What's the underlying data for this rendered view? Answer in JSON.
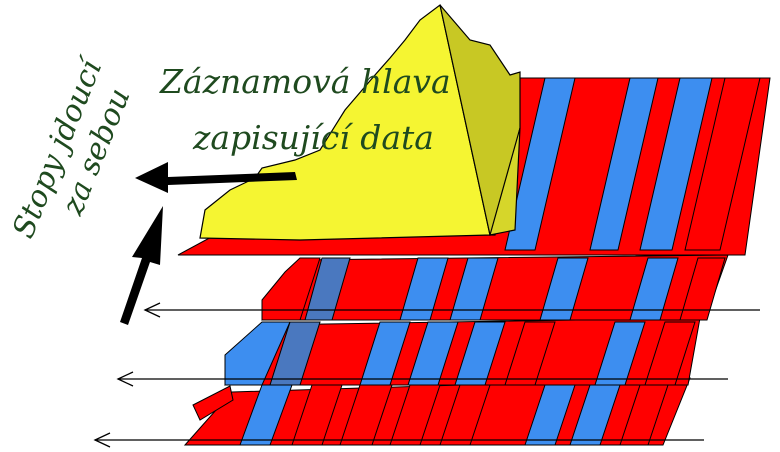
{
  "labels": {
    "head_line1": "Záznamová hlava",
    "head_line2": "zapisující data",
    "tracks_line1": "Stopy jdoucí",
    "tracks_line2": "za sebou"
  },
  "colors": {
    "red": "#ff0000",
    "blue": "#3d8ef0",
    "blue_dark": "#4a78bf",
    "head_yellow": "#f5f532",
    "head_dark": "#c8c824",
    "text_green": "#1f4a1f",
    "outline": "#000000"
  }
}
